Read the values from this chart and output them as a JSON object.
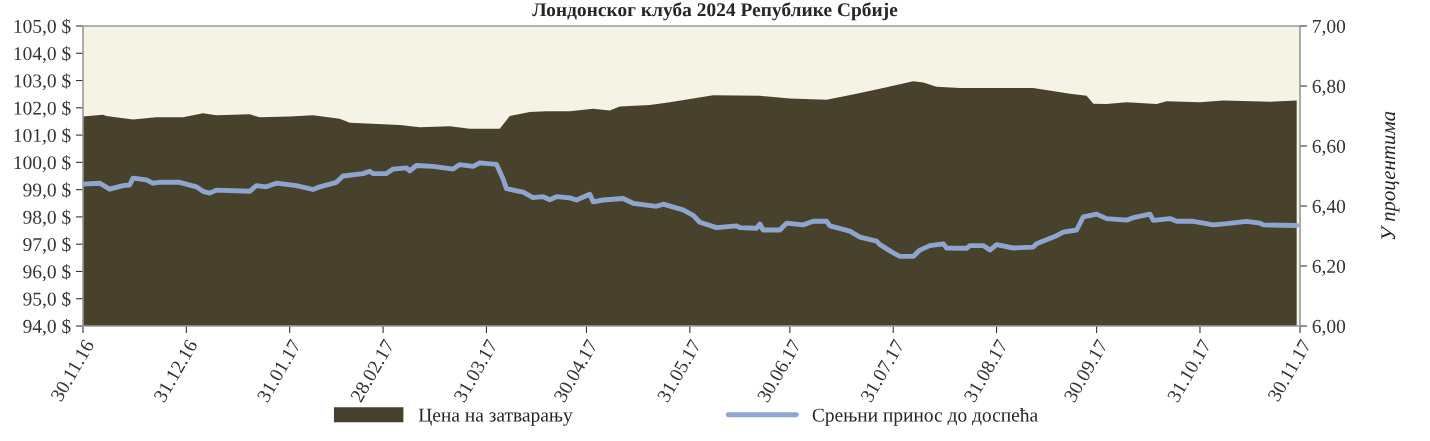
{
  "chart_data": {
    "type": "area",
    "title": "Лондонског клуба 2024 Републике Србије",
    "y2label": "У процентима",
    "legend": "bottom",
    "xlim": [
      "2016-11-30",
      "2017-11-30"
    ],
    "xticks": [
      {
        "value": "2016-11-30",
        "label": "30.11.16"
      },
      {
        "value": "2016-12-31",
        "label": "31.12.16"
      },
      {
        "value": "2017-01-31",
        "label": "31.01.17"
      },
      {
        "value": "2017-02-28",
        "label": "28.02.17"
      },
      {
        "value": "2017-03-31",
        "label": "31.03.17"
      },
      {
        "value": "2017-04-30",
        "label": "30.04.17"
      },
      {
        "value": "2017-05-31",
        "label": "31.05.17"
      },
      {
        "value": "2017-06-30",
        "label": "30.06.17"
      },
      {
        "value": "2017-07-31",
        "label": "31.07.17"
      },
      {
        "value": "2017-08-31",
        "label": "31.08.17"
      },
      {
        "value": "2017-09-30",
        "label": "30.09.17"
      },
      {
        "value": "2017-10-31",
        "label": "31.10.17"
      },
      {
        "value": "2017-11-30",
        "label": "30.11.17"
      }
    ],
    "ylim": [
      94,
      105
    ],
    "yticks": [
      {
        "value": 94,
        "label": "94,0 $"
      },
      {
        "value": 95,
        "label": "95,0 $"
      },
      {
        "value": 96,
        "label": "96,0 $"
      },
      {
        "value": 97,
        "label": "97,0 $"
      },
      {
        "value": 98,
        "label": "98,0 $"
      },
      {
        "value": 99,
        "label": "99,0 $"
      },
      {
        "value": 100,
        "label": "100,0 $"
      },
      {
        "value": 101,
        "label": "101,0 $"
      },
      {
        "value": 102,
        "label": "102,0 $"
      },
      {
        "value": 103,
        "label": "103,0 $"
      },
      {
        "value": 104,
        "label": "104,0 $"
      },
      {
        "value": 105,
        "label": "105,0 $"
      }
    ],
    "y2lim": [
      6.0,
      7.0
    ],
    "y2ticks": [
      {
        "value": 6.0,
        "label": "6,00"
      },
      {
        "value": 6.2,
        "label": "6,20"
      },
      {
        "value": 6.4,
        "label": "6,40"
      },
      {
        "value": 6.6,
        "label": "6,60"
      },
      {
        "value": 6.8,
        "label": "6,80"
      },
      {
        "value": 7.0,
        "label": "7,00"
      }
    ],
    "series": [
      {
        "name": "Цена на затварању",
        "color": "#48412b",
        "x": [
          "2016-11-30",
          "2016-12-06",
          "2016-12-07",
          "2016-12-15",
          "2016-12-22",
          "2016-12-30",
          "2017-01-05",
          "2017-01-09",
          "2017-01-19",
          "2017-01-22",
          "2017-01-31",
          "2017-02-07",
          "2017-02-15",
          "2017-02-18",
          "2017-02-28",
          "2017-03-05",
          "2017-03-11",
          "2017-03-20",
          "2017-03-26",
          "2017-04-04",
          "2017-04-07",
          "2017-04-13",
          "2017-04-18",
          "2017-04-25",
          "2017-05-02",
          "2017-05-07",
          "2017-05-10",
          "2017-05-19",
          "2017-05-25",
          "2017-06-07",
          "2017-06-21",
          "2017-06-30",
          "2017-07-11",
          "2017-07-20",
          "2017-07-28",
          "2017-08-06",
          "2017-08-09",
          "2017-08-13",
          "2017-08-20",
          "2017-08-31",
          "2017-09-11",
          "2017-09-22",
          "2017-09-27",
          "2017-09-29",
          "2017-10-03",
          "2017-10-09",
          "2017-10-18",
          "2017-10-21",
          "2017-10-31",
          "2017-11-07",
          "2017-11-21",
          "2017-11-29"
        ],
        "values": [
          101.68,
          101.75,
          101.7,
          101.57,
          101.65,
          101.65,
          101.8,
          101.73,
          101.76,
          101.65,
          101.68,
          101.73,
          101.6,
          101.45,
          101.4,
          101.37,
          101.29,
          101.32,
          101.23,
          101.23,
          101.7,
          101.85,
          101.87,
          101.87,
          101.97,
          101.9,
          102.05,
          102.1,
          102.2,
          102.46,
          102.44,
          102.34,
          102.3,
          102.52,
          102.73,
          102.97,
          102.93,
          102.77,
          102.73,
          102.73,
          102.73,
          102.52,
          102.44,
          102.15,
          102.14,
          102.2,
          102.14,
          102.24,
          102.2,
          102.27,
          102.22,
          102.27
        ]
      },
      {
        "name": "Срењни принос до доспећа",
        "type": "line",
        "axis": "y2",
        "color": "#8ea5cf",
        "x": [
          "2016-11-30",
          "2016-12-05",
          "2016-12-08",
          "2016-12-12",
          "2016-12-14",
          "2016-12-15",
          "2016-12-19",
          "2016-12-21",
          "2016-12-23",
          "2016-12-29",
          "2017-01-03",
          "2017-01-05",
          "2017-01-07",
          "2017-01-09",
          "2017-01-19",
          "2017-01-21",
          "2017-01-24",
          "2017-01-27",
          "2017-02-02",
          "2017-02-07",
          "2017-02-09",
          "2017-02-14",
          "2017-02-16",
          "2017-02-22",
          "2017-02-24",
          "2017-02-25",
          "2017-03-01",
          "2017-03-03",
          "2017-03-07",
          "2017-03-08",
          "2017-03-10",
          "2017-03-15",
          "2017-03-21",
          "2017-03-23",
          "2017-03-27",
          "2017-03-29",
          "2017-04-03",
          "2017-04-05",
          "2017-04-06",
          "2017-04-11",
          "2017-04-14",
          "2017-04-17",
          "2017-04-19",
          "2017-04-21",
          "2017-04-25",
          "2017-04-27",
          "2017-05-01",
          "2017-05-02",
          "2017-05-05",
          "2017-05-11",
          "2017-05-14",
          "2017-05-21",
          "2017-05-23",
          "2017-05-29",
          "2017-06-01",
          "2017-06-03",
          "2017-06-08",
          "2017-06-14",
          "2017-06-15",
          "2017-06-20",
          "2017-06-21",
          "2017-06-22",
          "2017-06-27",
          "2017-06-29",
          "2017-07-04",
          "2017-07-07",
          "2017-07-11",
          "2017-07-12",
          "2017-07-18",
          "2017-07-21",
          "2017-07-26",
          "2017-07-27",
          "2017-07-31",
          "2017-08-02",
          "2017-08-06",
          "2017-08-08",
          "2017-08-11",
          "2017-08-15",
          "2017-08-16",
          "2017-08-22",
          "2017-08-23",
          "2017-08-27",
          "2017-08-29",
          "2017-08-31",
          "2017-09-05",
          "2017-09-11",
          "2017-09-12",
          "2017-09-18",
          "2017-09-20",
          "2017-09-24",
          "2017-09-26",
          "2017-09-30",
          "2017-10-03",
          "2017-10-09",
          "2017-10-11",
          "2017-10-16",
          "2017-10-17",
          "2017-10-22",
          "2017-10-24",
          "2017-10-29",
          "2017-11-04",
          "2017-11-08",
          "2017-11-14",
          "2017-11-18",
          "2017-11-19",
          "2017-11-29"
        ],
        "values": [
          6.473,
          6.476,
          6.456,
          6.468,
          6.47,
          6.493,
          6.487,
          6.476,
          6.479,
          6.479,
          6.464,
          6.449,
          6.443,
          6.453,
          6.449,
          6.468,
          6.464,
          6.476,
          6.468,
          6.455,
          6.464,
          6.479,
          6.5,
          6.508,
          6.516,
          6.508,
          6.508,
          6.523,
          6.527,
          6.517,
          6.535,
          6.532,
          6.523,
          6.538,
          6.532,
          6.544,
          6.539,
          6.49,
          6.458,
          6.446,
          6.428,
          6.431,
          6.421,
          6.431,
          6.427,
          6.42,
          6.439,
          6.414,
          6.42,
          6.425,
          6.409,
          6.399,
          6.406,
          6.387,
          6.369,
          6.346,
          6.328,
          6.334,
          6.328,
          6.326,
          6.34,
          6.32,
          6.32,
          6.343,
          6.337,
          6.349,
          6.349,
          6.334,
          6.316,
          6.296,
          6.283,
          6.271,
          6.244,
          6.232,
          6.232,
          6.253,
          6.268,
          6.274,
          6.26,
          6.259,
          6.268,
          6.268,
          6.253,
          6.271,
          6.26,
          6.263,
          6.274,
          6.301,
          6.313,
          6.32,
          6.364,
          6.373,
          6.358,
          6.353,
          6.361,
          6.373,
          6.352,
          6.358,
          6.349,
          6.349,
          6.337,
          6.341,
          6.349,
          6.343,
          6.337,
          6.335
        ]
      }
    ]
  }
}
